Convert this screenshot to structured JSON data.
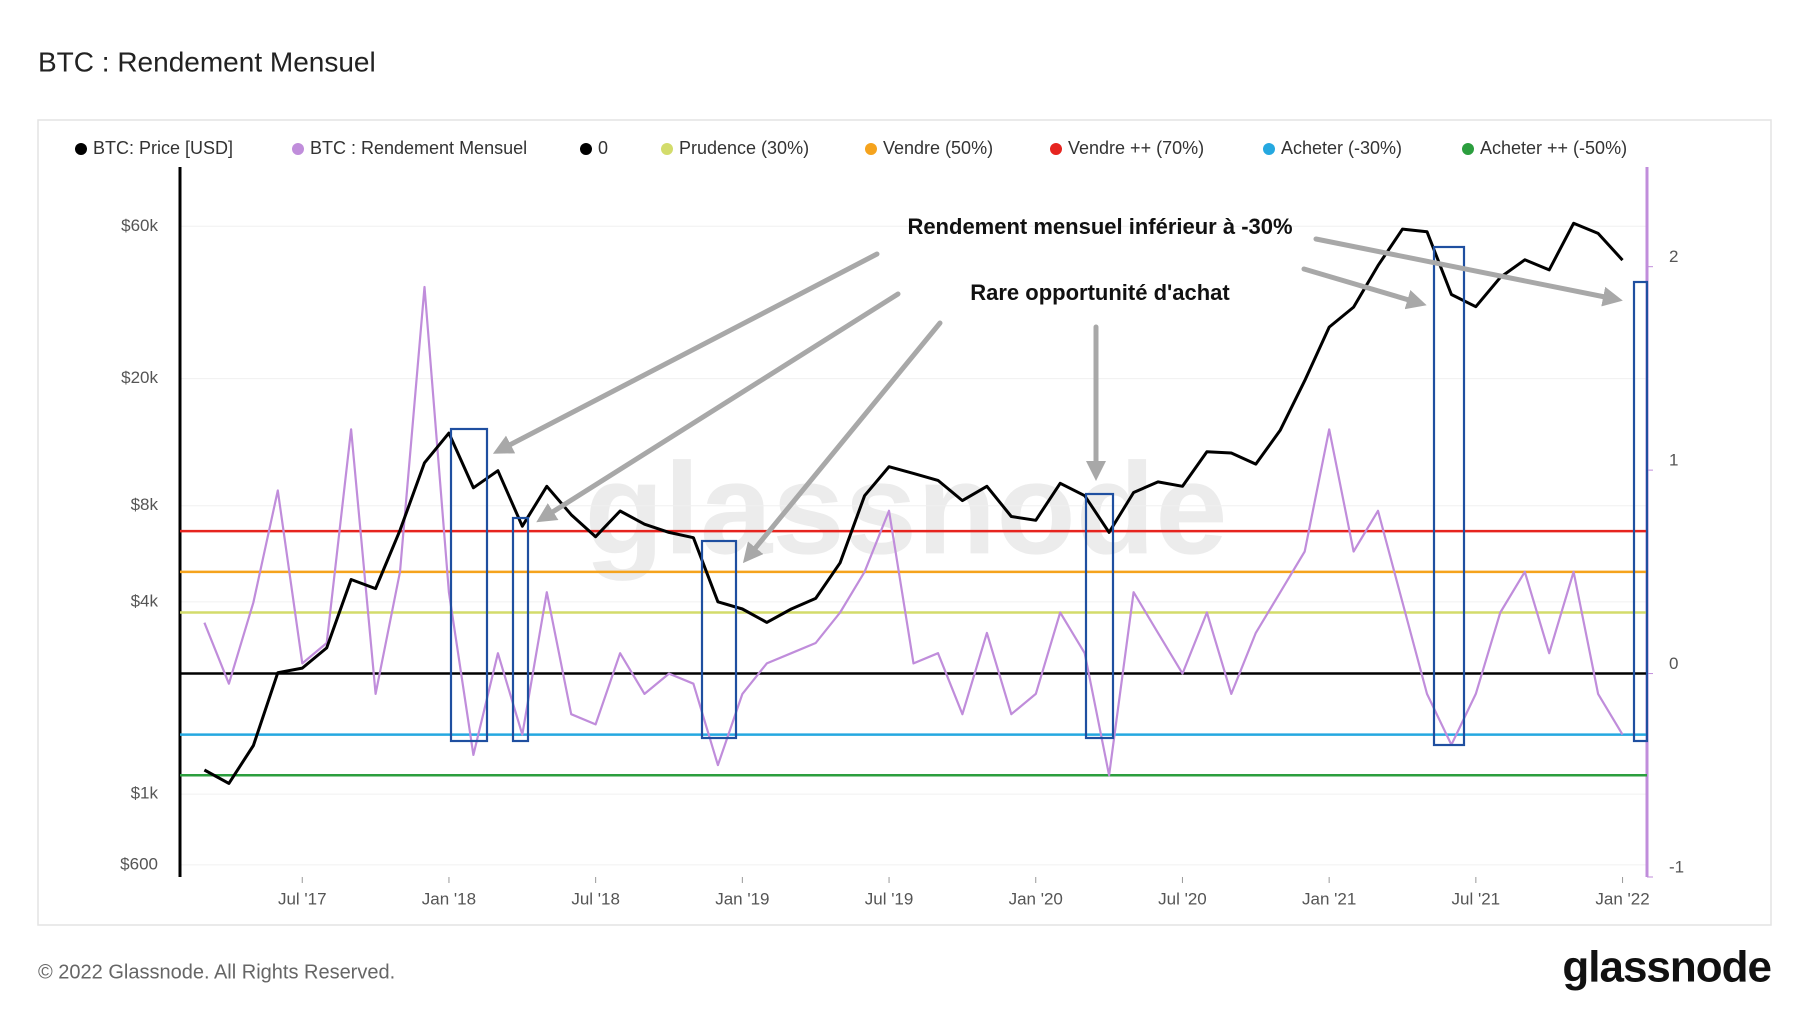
{
  "chart_data": {
    "type": "line",
    "title": "BTC : Rendement Mensuel",
    "log_y": true,
    "grid": true,
    "watermark": "glassnode",
    "annotations": [
      "Rendement mensuel inférieur à -30%",
      "Rare opportunité d'achat"
    ],
    "x": [
      "2017-03",
      "2017-04",
      "2017-05",
      "2017-06",
      "2017-07",
      "2017-08",
      "2017-09",
      "2017-10",
      "2017-11",
      "2017-12",
      "2018-01",
      "2018-02",
      "2018-03",
      "2018-04",
      "2018-05",
      "2018-06",
      "2018-07",
      "2018-08",
      "2018-09",
      "2018-10",
      "2018-11",
      "2018-12",
      "2019-01",
      "2019-02",
      "2019-03",
      "2019-04",
      "2019-05",
      "2019-06",
      "2019-07",
      "2019-08",
      "2019-09",
      "2019-10",
      "2019-11",
      "2019-12",
      "2020-01",
      "2020-02",
      "2020-03",
      "2020-04",
      "2020-05",
      "2020-06",
      "2020-07",
      "2020-08",
      "2020-09",
      "2020-10",
      "2020-11",
      "2020-12",
      "2021-01",
      "2021-02",
      "2021-03",
      "2021-04",
      "2021-05",
      "2021-06",
      "2021-07",
      "2021-08",
      "2021-09",
      "2021-10",
      "2021-11",
      "2021-12",
      "2022-01"
    ],
    "xlim": [
      "2017-02",
      "2022-02"
    ],
    "xticks": [
      {
        "value": "2017-07",
        "label": "Jul '17"
      },
      {
        "value": "2018-01",
        "label": "Jan '18"
      },
      {
        "value": "2018-07",
        "label": "Jul '18"
      },
      {
        "value": "2019-01",
        "label": "Jan '19"
      },
      {
        "value": "2019-07",
        "label": "Jul '19"
      },
      {
        "value": "2020-01",
        "label": "Jan '20"
      },
      {
        "value": "2020-07",
        "label": "Jul '20"
      },
      {
        "value": "2021-01",
        "label": "Jan '21"
      },
      {
        "value": "2021-07",
        "label": "Jul '21"
      },
      {
        "value": "2022-01",
        "label": "Jan '22"
      }
    ],
    "ylim": [
      550,
      92000
    ],
    "yticks": [
      {
        "value": 600,
        "label": "$600"
      },
      {
        "value": 1000,
        "label": "$1k"
      },
      {
        "value": 4000,
        "label": "$4k"
      },
      {
        "value": 8000,
        "label": "$8k"
      },
      {
        "value": 20000,
        "label": "$20k"
      },
      {
        "value": 60000,
        "label": "$60k"
      }
    ],
    "y2lim": [
      -1,
      2.49
    ],
    "y2ticks": [
      -1,
      0,
      1,
      2
    ],
    "series": [
      {
        "name": "BTC: Price [USD]",
        "color": "#000000",
        "values": [
          1190,
          1080,
          1420,
          2400,
          2480,
          2870,
          4700,
          4400,
          6700,
          10900,
          13500,
          9100,
          10300,
          6900,
          9200,
          7500,
          6400,
          7700,
          7000,
          6600,
          6350,
          4000,
          3800,
          3450,
          3800,
          4100,
          5300,
          8600,
          10600,
          10100,
          9600,
          8300,
          9200,
          7400,
          7200,
          9400,
          8600,
          6600,
          8800,
          9500,
          9200,
          11800,
          11700,
          10800,
          13800,
          19700,
          29000,
          33500,
          45200,
          58800,
          57700,
          36700,
          33600,
          41500,
          47100,
          43800,
          61300,
          57000,
          47000
        ]
      },
      {
        "name": "BTC : Rendement Mensuel",
        "color": "#c08ddb",
        "axis": "y2",
        "values": [
          0.25,
          -0.05,
          0.35,
          0.9,
          0.05,
          0.15,
          1.2,
          -0.1,
          0.5,
          1.9,
          0.4,
          -0.4,
          0.1,
          -0.3,
          0.4,
          -0.2,
          -0.25,
          0.1,
          -0.1,
          0.0,
          -0.05,
          -0.45,
          -0.1,
          0.05,
          0.1,
          0.15,
          0.3,
          0.5,
          0.8,
          0.05,
          0.1,
          -0.2,
          0.2,
          -0.2,
          -0.1,
          0.3,
          0.1,
          -0.5,
          0.4,
          0.2,
          0.0,
          0.3,
          -0.1,
          0.2,
          0.4,
          0.6,
          1.2,
          0.6,
          0.8,
          0.35,
          -0.1,
          -0.35,
          -0.1,
          0.3,
          0.5,
          0.1,
          0.5,
          -0.1,
          -0.3
        ]
      },
      {
        "name": "0",
        "color": "#000000",
        "axis": "y2",
        "level": 0
      },
      {
        "name": "Prudence (30%)",
        "color": "#d3dc6b",
        "axis": "y2",
        "level": 0.3
      },
      {
        "name": "Vendre (50%)",
        "color": "#f5a31d",
        "axis": "y2",
        "level": 0.5
      },
      {
        "name": "Vendre ++ (70%)",
        "color": "#e6241f",
        "axis": "y2",
        "level": 0.7
      },
      {
        "name": "Acheter (-30%)",
        "color": "#25a8e0",
        "axis": "y2",
        "level": -0.3
      },
      {
        "name": "Acheter ++ (-50%)",
        "color": "#2b9e3e",
        "axis": "y2",
        "level": -0.5
      }
    ]
  },
  "footer": {
    "copyright": "© 2022 Glassnode. All Rights Reserved.",
    "logo": "glassnode"
  }
}
